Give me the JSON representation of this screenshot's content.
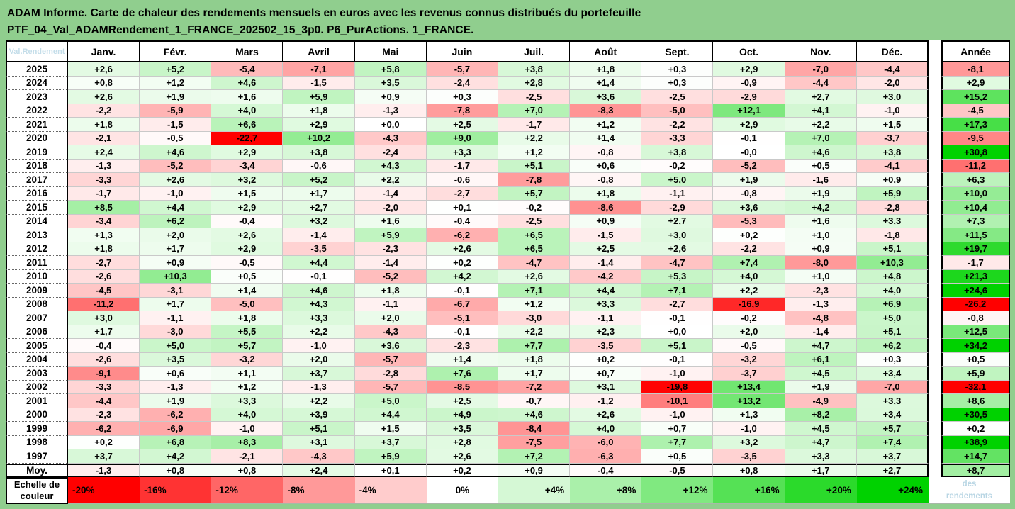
{
  "title": {
    "line1": "ADAM Informe. Carte de chaleur des rendements mensuels en euros avec les revenus connus distribués du portefeuille",
    "line2": "PTF_04_Val_ADAMRendement_1_FRANCE_202502_15_3p0. P6_PurActions. 1_FRANCE."
  },
  "watermarks": {
    "corner": "Val.Rendement",
    "footer_line1": "des",
    "footer_line2": "rendements"
  },
  "colors": {
    "page_background": "#90CE8E",
    "header_background": "#FFFFFF",
    "grid_line": "#C9C9C9",
    "border": "#000000",
    "watermark_text": "#BCD8E6"
  },
  "chart_data": {
    "type": "heatmap",
    "title": "ADAM Informe. Carte de chaleur des rendements mensuels en euros avec les revenus connus distribués du portefeuille PTF_04_Val_ADAMRendement_1_FRANCE_202502_15_3p0. P6_PurActions. 1_FRANCE.",
    "columns": [
      "Janv.",
      "Févr.",
      "Mars",
      "Avril",
      "Mai",
      "Juin",
      "Juil.",
      "Août",
      "Sept.",
      "Oct.",
      "Nov.",
      "Déc."
    ],
    "annual_column": "Année",
    "rows": [
      {
        "year": "2025",
        "values": [
          "+2,6",
          "+5,2",
          "-5,4",
          "-7,1",
          "+5,8",
          "-5,7",
          "+3,8",
          "+1,8",
          "+0,3",
          "+2,9",
          "-7,0",
          "-4,4"
        ],
        "annee": "-8,1"
      },
      {
        "year": "2024",
        "values": [
          "+0,8",
          "+1,2",
          "+4,6",
          "-1,5",
          "+3,5",
          "-2,4",
          "+2,8",
          "+1,4",
          "+0,3",
          "-0,9",
          "-4,4",
          "-2,0"
        ],
        "annee": "+2,9"
      },
      {
        "year": "2023",
        "values": [
          "+2,6",
          "+1,9",
          "+1,6",
          "+5,9",
          "+0,9",
          "+0,3",
          "-2,5",
          "+3,6",
          "-2,5",
          "-2,9",
          "+2,7",
          "+3,0"
        ],
        "annee": "+15,2"
      },
      {
        "year": "2022",
        "values": [
          "-2,2",
          "-5,9",
          "+4,0",
          "+1,8",
          "-1,3",
          "-7,8",
          "+7,0",
          "-8,3",
          "-5,0",
          "+12,1",
          "+4,1",
          "-1,0"
        ],
        "annee": "-4,5"
      },
      {
        "year": "2021",
        "values": [
          "+1,8",
          "-1,5",
          "+6,6",
          "+2,9",
          "+0,0",
          "+2,5",
          "-1,7",
          "+1,2",
          "-2,2",
          "+2,9",
          "+2,2",
          "+1,5"
        ],
        "annee": "+17,3"
      },
      {
        "year": "2020",
        "values": [
          "-2,1",
          "-0,5",
          "-22,7",
          "+10,2",
          "-4,3",
          "+9,0",
          "+2,2",
          "+1,4",
          "-3,3",
          "-0,1",
          "+7,0",
          "-3,7"
        ],
        "annee": "-9,5"
      },
      {
        "year": "2019",
        "values": [
          "+2,4",
          "+4,6",
          "+2,9",
          "+3,8",
          "-2,4",
          "+3,3",
          "+1,2",
          "-0,8",
          "+3,8",
          "-0,0",
          "+4,6",
          "+3,8"
        ],
        "annee": "+30,8"
      },
      {
        "year": "2018",
        "values": [
          "-1,3",
          "-5,2",
          "-3,4",
          "-0,6",
          "+4,3",
          "-1,7",
          "+5,1",
          "+0,6",
          "-0,2",
          "-5,2",
          "+0,5",
          "-4,1"
        ],
        "annee": "-11,2"
      },
      {
        "year": "2017",
        "values": [
          "-3,3",
          "+2,6",
          "+3,2",
          "+5,2",
          "+2,2",
          "-0,6",
          "-7,8",
          "-0,8",
          "+5,0",
          "+1,9",
          "-1,6",
          "+0,9"
        ],
        "annee": "+6,3"
      },
      {
        "year": "2016",
        "values": [
          "-1,7",
          "-1,0",
          "+1,5",
          "+1,7",
          "-1,4",
          "-2,7",
          "+5,7",
          "+1,8",
          "-1,1",
          "-0,8",
          "+1,9",
          "+5,9"
        ],
        "annee": "+10,0"
      },
      {
        "year": "2015",
        "values": [
          "+8,5",
          "+4,4",
          "+2,9",
          "+2,7",
          "-2,0",
          "+0,1",
          "-0,2",
          "-8,6",
          "-2,9",
          "+3,6",
          "+4,2",
          "-2,8"
        ],
        "annee": "+10,4"
      },
      {
        "year": "2014",
        "values": [
          "-3,4",
          "+6,2",
          "-0,4",
          "+3,2",
          "+1,6",
          "-0,4",
          "-2,5",
          "+0,9",
          "+2,7",
          "-5,3",
          "+1,6",
          "+3,3"
        ],
        "annee": "+7,3"
      },
      {
        "year": "2013",
        "values": [
          "+1,3",
          "+2,0",
          "+2,6",
          "-1,4",
          "+5,9",
          "-6,2",
          "+6,5",
          "-1,5",
          "+3,0",
          "+0,2",
          "+1,0",
          "-1,8"
        ],
        "annee": "+11,5"
      },
      {
        "year": "2012",
        "values": [
          "+1,8",
          "+1,7",
          "+2,9",
          "-3,5",
          "-2,3",
          "+2,6",
          "+6,5",
          "+2,5",
          "+2,6",
          "-2,2",
          "+0,9",
          "+5,1"
        ],
        "annee": "+19,7"
      },
      {
        "year": "2011",
        "values": [
          "-2,7",
          "+0,9",
          "-0,5",
          "+4,4",
          "-1,4",
          "+0,2",
          "-4,7",
          "-1,4",
          "-4,7",
          "+7,4",
          "-8,0",
          "+10,3"
        ],
        "annee": "-1,7"
      },
      {
        "year": "2010",
        "values": [
          "-2,6",
          "+10,3",
          "+0,5",
          "-0,1",
          "-5,2",
          "+4,2",
          "+2,6",
          "-4,2",
          "+5,3",
          "+4,0",
          "+1,0",
          "+4,8"
        ],
        "annee": "+21,3"
      },
      {
        "year": "2009",
        "values": [
          "-4,5",
          "-3,1",
          "+1,4",
          "+4,6",
          "+1,8",
          "-0,1",
          "+7,1",
          "+4,4",
          "+7,1",
          "+2,2",
          "-2,3",
          "+4,0"
        ],
        "annee": "+24,6"
      },
      {
        "year": "2008",
        "values": [
          "-11,2",
          "+1,7",
          "-5,0",
          "+4,3",
          "-1,1",
          "-6,7",
          "+1,2",
          "+3,3",
          "-2,7",
          "-16,9",
          "-1,3",
          "+6,9"
        ],
        "annee": "-26,2"
      },
      {
        "year": "2007",
        "values": [
          "+3,0",
          "-1,1",
          "+1,8",
          "+3,3",
          "+2,0",
          "-5,1",
          "-3,0",
          "-1,1",
          "-0,1",
          "-0,2",
          "-4,8",
          "+5,0"
        ],
        "annee": "-0,8"
      },
      {
        "year": "2006",
        "values": [
          "+1,7",
          "-3,0",
          "+5,5",
          "+2,2",
          "-4,3",
          "-0,1",
          "+2,2",
          "+2,3",
          "+0,0",
          "+2,0",
          "-1,4",
          "+5,1"
        ],
        "annee": "+12,5"
      },
      {
        "year": "2005",
        "values": [
          "-0,4",
          "+5,0",
          "+5,7",
          "-1,0",
          "+3,6",
          "-2,3",
          "+7,7",
          "-3,5",
          "+5,1",
          "-0,5",
          "+4,7",
          "+6,2"
        ],
        "annee": "+34,2"
      },
      {
        "year": "2004",
        "values": [
          "-2,6",
          "+3,5",
          "-3,2",
          "+2,0",
          "-5,7",
          "+1,4",
          "+1,8",
          "+0,2",
          "-0,1",
          "-3,2",
          "+6,1",
          "+0,3"
        ],
        "annee": "+0,5"
      },
      {
        "year": "2003",
        "values": [
          "-9,1",
          "+0,6",
          "+1,1",
          "+3,7",
          "-2,8",
          "+7,6",
          "+1,7",
          "+0,7",
          "-1,0",
          "-3,7",
          "+4,5",
          "+3,4"
        ],
        "annee": "+5,9"
      },
      {
        "year": "2002",
        "values": [
          "-3,3",
          "-1,3",
          "+1,2",
          "-1,3",
          "-5,7",
          "-8,5",
          "-7,2",
          "+3,1",
          "-19,8",
          "+13,4",
          "+1,9",
          "-7,0"
        ],
        "annee": "-32,1"
      },
      {
        "year": "2001",
        "values": [
          "-4,4",
          "+1,9",
          "+3,3",
          "+2,2",
          "+5,0",
          "+2,5",
          "-0,7",
          "-1,2",
          "-10,1",
          "+13,2",
          "-4,9",
          "+3,3"
        ],
        "annee": "+8,6"
      },
      {
        "year": "2000",
        "values": [
          "-2,3",
          "-6,2",
          "+4,0",
          "+3,9",
          "+4,4",
          "+4,9",
          "+4,6",
          "+2,6",
          "-1,0",
          "+1,3",
          "+8,2",
          "+3,4"
        ],
        "annee": "+30,5"
      },
      {
        "year": "1999",
        "values": [
          "-6,2",
          "-6,9",
          "-1,0",
          "+5,1",
          "+1,5",
          "+3,5",
          "-8,4",
          "+4,0",
          "+0,7",
          "-1,0",
          "+4,5",
          "+5,7"
        ],
        "annee": "+0,2"
      },
      {
        "year": "1998",
        "values": [
          "+0,2",
          "+6,8",
          "+8,3",
          "+3,1",
          "+3,7",
          "+2,8",
          "-7,5",
          "-6,0",
          "+7,7",
          "+3,2",
          "+4,7",
          "+7,4"
        ],
        "annee": "+38,9"
      },
      {
        "year": "1997",
        "values": [
          "+3,7",
          "+4,2",
          "-2,1",
          "-4,3",
          "+5,9",
          "+2,6",
          "+7,2",
          "-6,3",
          "+0,5",
          "-3,5",
          "+3,3",
          "+3,7"
        ],
        "annee": "+14,7"
      }
    ],
    "average_row": {
      "label": "Moy.",
      "values": [
        "-1,3",
        "+0,8",
        "+0,8",
        "+2,4",
        "+0,1",
        "+0,2",
        "+0,9",
        "-0,4",
        "-0,5",
        "+0,8",
        "+1,7",
        "+2,7"
      ],
      "annee": "+8,7"
    },
    "scale_row": {
      "label_line1": "Echelle de",
      "label_line2": "couleur",
      "stops": [
        "-20%",
        "-16%",
        "-12%",
        "-8%",
        "-4%",
        "0%",
        "+4%",
        "+8%",
        "+12%",
        "+16%",
        "+20%",
        "+24%"
      ]
    },
    "color_scale": {
      "domain_min": -20,
      "domain_max": 24,
      "negative": "#FF0000",
      "neutral": "#FFFFFF",
      "positive": "#00D200",
      "legend_position": "bottom"
    }
  }
}
